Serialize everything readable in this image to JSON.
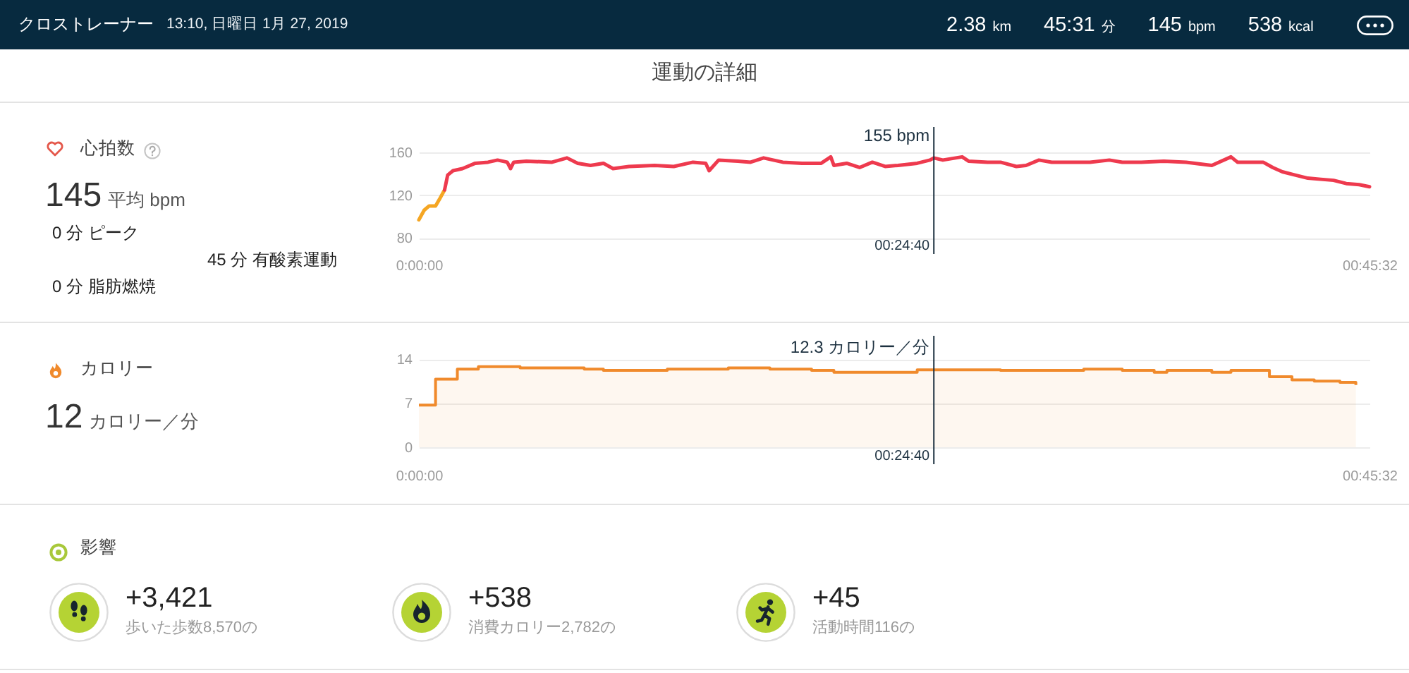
{
  "chart_data": [
    {
      "type": "other",
      "title": "クロストレーナー",
      "subtitle": "13:10, 日曜日 1月 27, 2019",
      "annotations": [
        "2.38 km",
        "45:31 分",
        "145 bpm",
        "538 kcal",
        "運動の詳細"
      ]
    },
    {
      "type": "line",
      "annotations": [
        "心拍数",
        "145 平均 bpm",
        "0 分 ピーク",
        "45 分 有酸素運動",
        "0 分 脂肪燃焼",
        {
          "text": "155 bpm",
          "x": 0.4111,
          "y": 155
        }
      ],
      "series": [
        {
          "color": "#f5a623",
          "x": [
            0,
            0.0042,
            0.0082,
            0.0133,
            0.0163,
            0.0205
          ],
          "values": [
            97,
            106,
            110,
            110,
            116,
            125
          ]
        },
        {
          "color": "#ee3a4e",
          "x": [
            0.0205,
            0.023,
            0.0272,
            0.0348,
            0.045,
            0.0552,
            0.0628,
            0.0705,
            0.0732,
            0.0757,
            0.0858,
            0.1063,
            0.1182,
            0.1268,
            0.137,
            0.1473,
            0.155,
            0.1677,
            0.1882,
            0.2035,
            0.2188,
            0.229,
            0.2317,
            0.2393,
            0.2547,
            0.2648,
            0.2752,
            0.2905,
            0.3058,
            0.3212,
            0.3288,
            0.3313,
            0.3415,
            0.3518,
            0.362,
            0.3722,
            0.3825,
            0.3978,
            0.408,
            0.4111,
            0.4183,
            0.4337,
            0.4388,
            0.454,
            0.4643,
            0.477,
            0.4847,
            0.495,
            0.5052,
            0.5205,
            0.5358,
            0.5512,
            0.5615,
            0.5768,
            0.5947,
            0.6125,
            0.633,
            0.6483,
            0.6535,
            0.674,
            0.6817,
            0.6893,
            0.6995,
            0.7097,
            0.72,
            0.7302,
            0.7403,
            0.7507,
            0.7589
          ],
          "values": [
            125,
            139,
            143,
            145,
            150,
            151,
            153,
            151,
            145,
            151,
            152,
            151,
            155,
            150,
            148,
            150,
            145,
            147,
            148,
            147,
            151,
            150,
            143,
            153,
            152,
            151,
            155,
            151,
            150,
            150,
            156,
            148,
            150,
            146,
            151,
            147,
            148,
            150,
            153,
            155,
            153,
            156,
            152,
            151,
            151,
            147,
            148,
            153,
            151,
            151,
            151,
            153,
            151,
            151,
            152,
            151,
            148,
            156,
            151,
            151,
            146,
            142,
            139,
            136,
            135,
            134,
            131,
            130,
            128
          ]
        }
      ],
      "xlim": [
        0,
        0.7589
      ],
      "xticks": [
        {
          "value": 0,
          "label": "0:00:00"
        },
        {
          "value": 0.7589,
          "label": "00:45:32"
        }
      ],
      "ylim": [
        65,
        184
      ],
      "yticks": [
        80,
        120,
        160
      ],
      "grid": "y",
      "ref_lines": [
        {
          "axis": "x",
          "value": 0.4111,
          "label": "00:24:40",
          "color": "#1d3140"
        }
      ]
    },
    {
      "type": "area",
      "annotations": [
        "カロリー",
        "12 カロリー／分",
        {
          "text": "12.3 カロリー／分",
          "x": 0.4111,
          "y": 12.3
        }
      ],
      "x": [
        0,
        0.0133,
        0.0307,
        0.0475,
        0.0808,
        0.132,
        0.1473,
        0.1983,
        0.247,
        0.2802,
        0.3135,
        0.3313,
        0.3978,
        0.4643,
        0.5308,
        0.5615,
        0.587,
        0.5972,
        0.633,
        0.6483,
        0.679,
        0.697,
        0.7148,
        0.7353,
        0.748
      ],
      "series": [
        {
          "color": "#f08a2c",
          "values": [
            6.7,
            10.8,
            12.4,
            12.8,
            12.6,
            12.4,
            12.2,
            12.4,
            12.6,
            12.4,
            12.2,
            11.9,
            12.3,
            12.2,
            12.4,
            12.2,
            11.9,
            12.2,
            11.9,
            12.2,
            11.2,
            10.7,
            10.5,
            10.3,
            10.0
          ]
        }
      ],
      "xlim": [
        0,
        0.7589
      ],
      "xticks": [
        {
          "value": 0,
          "label": "0:00:00"
        },
        {
          "value": 0.7589,
          "label": "00:45:32"
        }
      ],
      "ylim": [
        -2.7,
        17.7
      ],
      "yticks": [
        0,
        7,
        14
      ],
      "grid": "y",
      "ref_lines": [
        {
          "axis": "x",
          "value": 0.4111,
          "label": "00:24:40",
          "color": "#1d3140"
        }
      ]
    },
    {
      "type": "other",
      "title": "影響",
      "annotations": [
        "+3,421",
        "歩いた歩数8,570の",
        "+538",
        "消費カロリー2,782の",
        "+45",
        "活動時間116の"
      ]
    }
  ]
}
